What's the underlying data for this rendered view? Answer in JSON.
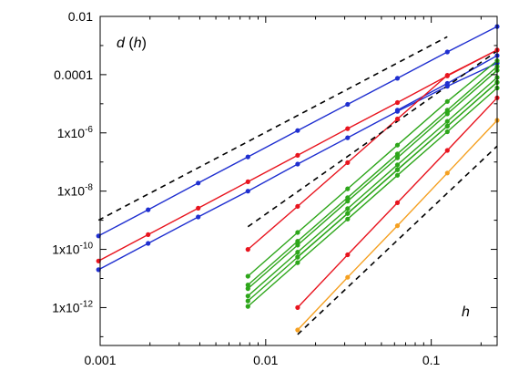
{
  "chart_data": {
    "type": "line",
    "title": "",
    "xlabel": "h",
    "ylabel": "d(h)",
    "ylabel_parts": {
      "main": "d",
      "arg": "h"
    },
    "x_scale": "log",
    "y_scale": "log",
    "xlim": [
      0.001,
      0.25
    ],
    "ylim": [
      5e-14,
      0.01
    ],
    "grid": false,
    "legend": "none",
    "xticks": [
      {
        "value": 0.001,
        "label": "0.001"
      },
      {
        "value": 0.01,
        "label": "0.01"
      },
      {
        "value": 0.1,
        "label": "0.1"
      }
    ],
    "yticks": [
      {
        "value": 1e-12,
        "base": "1x10",
        "exp": "-12"
      },
      {
        "value": 1e-10,
        "base": "1x10",
        "exp": "-10"
      },
      {
        "value": 1e-08,
        "base": "1x10",
        "exp": "-8"
      },
      {
        "value": 1e-06,
        "base": "1x10",
        "exp": "-6"
      },
      {
        "value": 0.0001,
        "base": "0.0001",
        "exp": ""
      },
      {
        "value": 0.01,
        "base": "0.01",
        "exp": ""
      }
    ],
    "colors": {
      "blue": "#1f2fd0",
      "red": "#e8141e",
      "green": "#2da61a",
      "orange": "#f5a020",
      "reference": "#000000"
    },
    "series": [
      {
        "color": "blue",
        "x": [
          0.000977,
          0.00195,
          0.00391,
          0.00781,
          0.0156,
          0.03125,
          0.0625,
          0.125,
          0.25
        ],
        "y": [
          2.9e-10,
          2.3e-09,
          1.9e-08,
          1.5e-07,
          1.2e-06,
          9.5e-06,
          7.5e-05,
          0.0006,
          0.0045
        ]
      },
      {
        "color": "red",
        "x": [
          0.000977,
          0.00195,
          0.00391,
          0.00781,
          0.0156,
          0.03125,
          0.0625,
          0.125,
          0.25
        ],
        "y": [
          4e-11,
          3.2e-10,
          2.6e-09,
          2.1e-08,
          1.7e-07,
          1.4e-06,
          1.1e-05,
          9e-05,
          0.0007
        ]
      },
      {
        "color": "blue",
        "x": [
          0.000977,
          0.00195,
          0.00391,
          0.00781,
          0.0156,
          0.03125,
          0.0625,
          0.125,
          0.25
        ],
        "y": [
          2e-11,
          1.6e-10,
          1.3e-09,
          1e-08,
          8.5e-08,
          6.8e-07,
          5.5e-06,
          4e-05,
          0.00025
        ]
      },
      {
        "color": "blue",
        "x": [
          0.0625,
          0.125,
          0.25
        ],
        "y": [
          6e-06,
          5e-05,
          0.00045
        ]
      },
      {
        "color": "red",
        "x": [
          0.00781,
          0.0156,
          0.03125,
          0.0625,
          0.125,
          0.25
        ],
        "y": [
          1e-10,
          3e-09,
          9.5e-08,
          3e-06,
          9.5e-05,
          0.0007
        ]
      },
      {
        "color": "green",
        "x": [
          0.00781,
          0.0156,
          0.03125,
          0.0625,
          0.125,
          0.25
        ],
        "y": [
          1.2e-11,
          3.8e-10,
          1.2e-08,
          3.8e-07,
          1.2e-05,
          0.0003
        ]
      },
      {
        "color": "green",
        "x": [
          0.00781,
          0.0156,
          0.03125,
          0.0625,
          0.125,
          0.25
        ],
        "y": [
          6e-12,
          1.9e-10,
          6e-09,
          1.9e-07,
          6e-06,
          0.00019
        ]
      },
      {
        "color": "green",
        "x": [
          0.00781,
          0.0156,
          0.03125,
          0.0625,
          0.125,
          0.25
        ],
        "y": [
          4.5e-12,
          1.4e-10,
          4.5e-09,
          1.4e-07,
          4.5e-06,
          0.00014
        ]
      },
      {
        "color": "green",
        "x": [
          0.00781,
          0.0156,
          0.03125,
          0.0625,
          0.125,
          0.25
        ],
        "y": [
          2.5e-12,
          8e-11,
          2.5e-09,
          8e-08,
          2.5e-06,
          8e-05
        ]
      },
      {
        "color": "green",
        "x": [
          0.00781,
          0.0156,
          0.03125,
          0.0625,
          0.125,
          0.25
        ],
        "y": [
          1.7e-12,
          5.4e-11,
          1.7e-09,
          5.4e-08,
          1.7e-06,
          5.4e-05
        ]
      },
      {
        "color": "green",
        "x": [
          0.00781,
          0.0156,
          0.03125,
          0.0625,
          0.125,
          0.25
        ],
        "y": [
          1.1e-12,
          3.5e-11,
          1.1e-09,
          3.5e-08,
          1.1e-06,
          3.5e-05
        ]
      },
      {
        "color": "green",
        "x": [
          0.0156,
          0.03125,
          0.0625,
          0.125,
          0.25
        ],
        "y": [
          5.5e-11,
          1.7e-09,
          5.5e-08,
          1.7e-06,
          5.5e-05
        ]
      },
      {
        "color": "red",
        "x": [
          0.0156,
          0.03125,
          0.0625,
          0.125,
          0.25
        ],
        "y": [
          1e-12,
          6.5e-11,
          4e-09,
          2.5e-07,
          1.6e-05
        ]
      },
      {
        "color": "orange",
        "x": [
          0.0156,
          0.03125,
          0.0625,
          0.125,
          0.25
        ],
        "y": [
          1.7e-13,
          1.1e-11,
          6.5e-10,
          4.2e-08,
          2.7e-06
        ]
      }
    ],
    "reference_lines": [
      {
        "style": "dashed",
        "x": [
          0.000977,
          0.125
        ],
        "y": [
          1e-09,
          0.002
        ]
      },
      {
        "style": "dashed",
        "x": [
          0.00781,
          0.25
        ],
        "y": [
          6e-10,
          0.00065
        ]
      },
      {
        "style": "dashed",
        "x": [
          0.0156,
          0.25
        ],
        "y": [
          1.2e-13,
          3.5e-07
        ]
      }
    ]
  }
}
